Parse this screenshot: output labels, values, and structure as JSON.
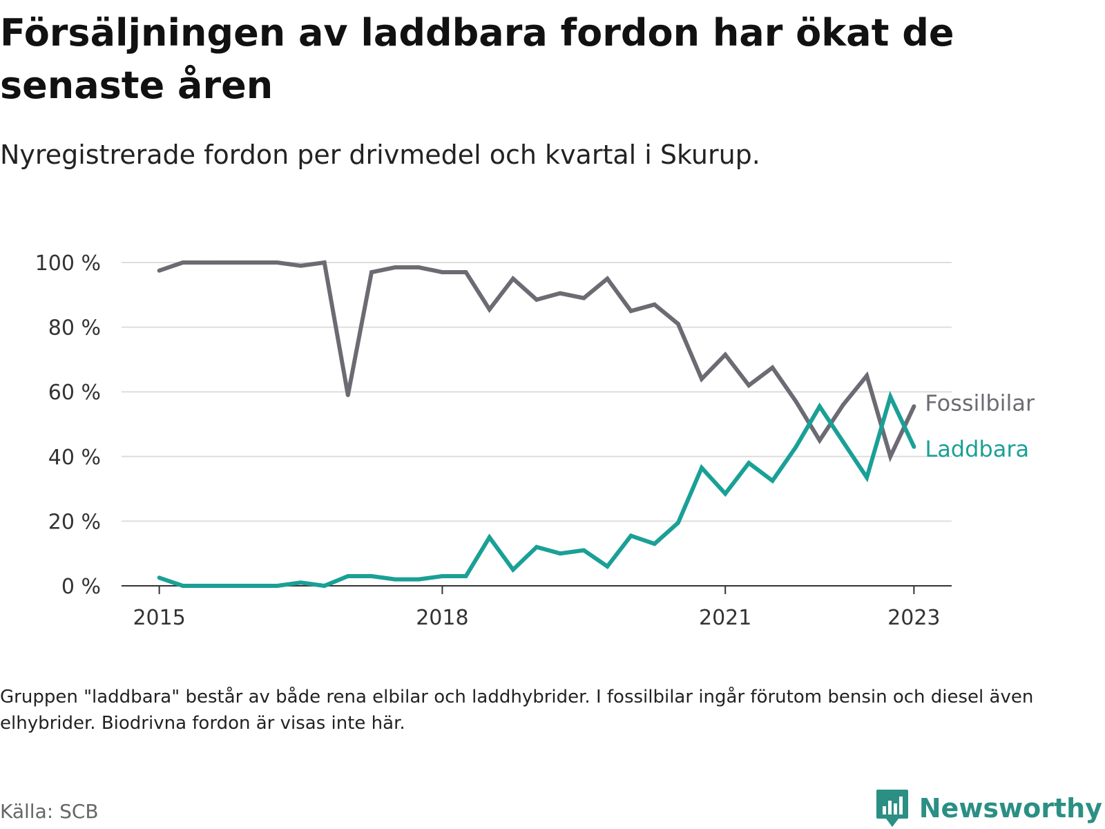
{
  "title": "Försäljningen av laddbara fordon har ökat de senaste åren",
  "subtitle": "Nyregistrerade fordon per drivmedel och kvartal i Skurup.",
  "note": "Gruppen \"laddbara\" består av både rena elbilar och laddhybrider. I fossilbilar ingår förutom bensin och diesel även elhybrider. Biodrivna fordon är visas inte här.",
  "source": "Källa: SCB",
  "brand": {
    "name": "Newsworthy",
    "icon": "newsworthy-logo-icon",
    "color": "#2b8f84"
  },
  "chart_data": {
    "type": "line",
    "x": [
      2015.0,
      2015.25,
      2015.5,
      2015.75,
      2016.0,
      2016.25,
      2016.5,
      2016.75,
      2017.0,
      2017.25,
      2017.5,
      2017.75,
      2018.0,
      2018.25,
      2018.5,
      2018.75,
      2019.0,
      2019.25,
      2019.5,
      2019.75,
      2020.0,
      2020.25,
      2020.5,
      2020.75,
      2021.0,
      2021.25,
      2021.5,
      2021.75,
      2022.0,
      2022.25,
      2022.5,
      2022.75,
      2023.0
    ],
    "series": [
      {
        "name": "Fossilbilar",
        "color": "#6b6b73",
        "values": [
          97.5,
          100,
          100,
          100,
          100,
          100,
          99,
          100,
          59,
          97,
          98.5,
          98.5,
          97,
          97,
          85.5,
          95,
          88.5,
          90.5,
          89,
          95,
          85,
          87,
          81,
          64,
          71.5,
          62,
          67.5,
          57,
          45,
          56,
          65,
          40,
          55.5
        ]
      },
      {
        "name": "Laddbara",
        "color": "#1aa096",
        "values": [
          2.5,
          0,
          0,
          0,
          0,
          0,
          1,
          0,
          3,
          3,
          2,
          2,
          3,
          3,
          15,
          5,
          12,
          10,
          11,
          6,
          15.5,
          13,
          19.5,
          36.5,
          28.5,
          38,
          32.5,
          43,
          55.5,
          44.5,
          33.5,
          58.5,
          43
        ]
      }
    ],
    "xticks": [
      {
        "value": 2015,
        "label": "2015"
      },
      {
        "value": 2018,
        "label": "2018"
      },
      {
        "value": 2021,
        "label": "2021"
      },
      {
        "value": 2023,
        "label": "2023"
      }
    ],
    "yticks": [
      {
        "value": 0,
        "label": "0 %"
      },
      {
        "value": 20,
        "label": "20 %"
      },
      {
        "value": 40,
        "label": "40 %"
      },
      {
        "value": 60,
        "label": "60 %"
      },
      {
        "value": 80,
        "label": "80 %"
      },
      {
        "value": 100,
        "label": "100 %"
      }
    ],
    "xlim": [
      2014.6,
      2023.4
    ],
    "ylim": [
      0,
      100
    ],
    "grid": "horizontal",
    "legend": "direct labels at line ends (right)"
  }
}
